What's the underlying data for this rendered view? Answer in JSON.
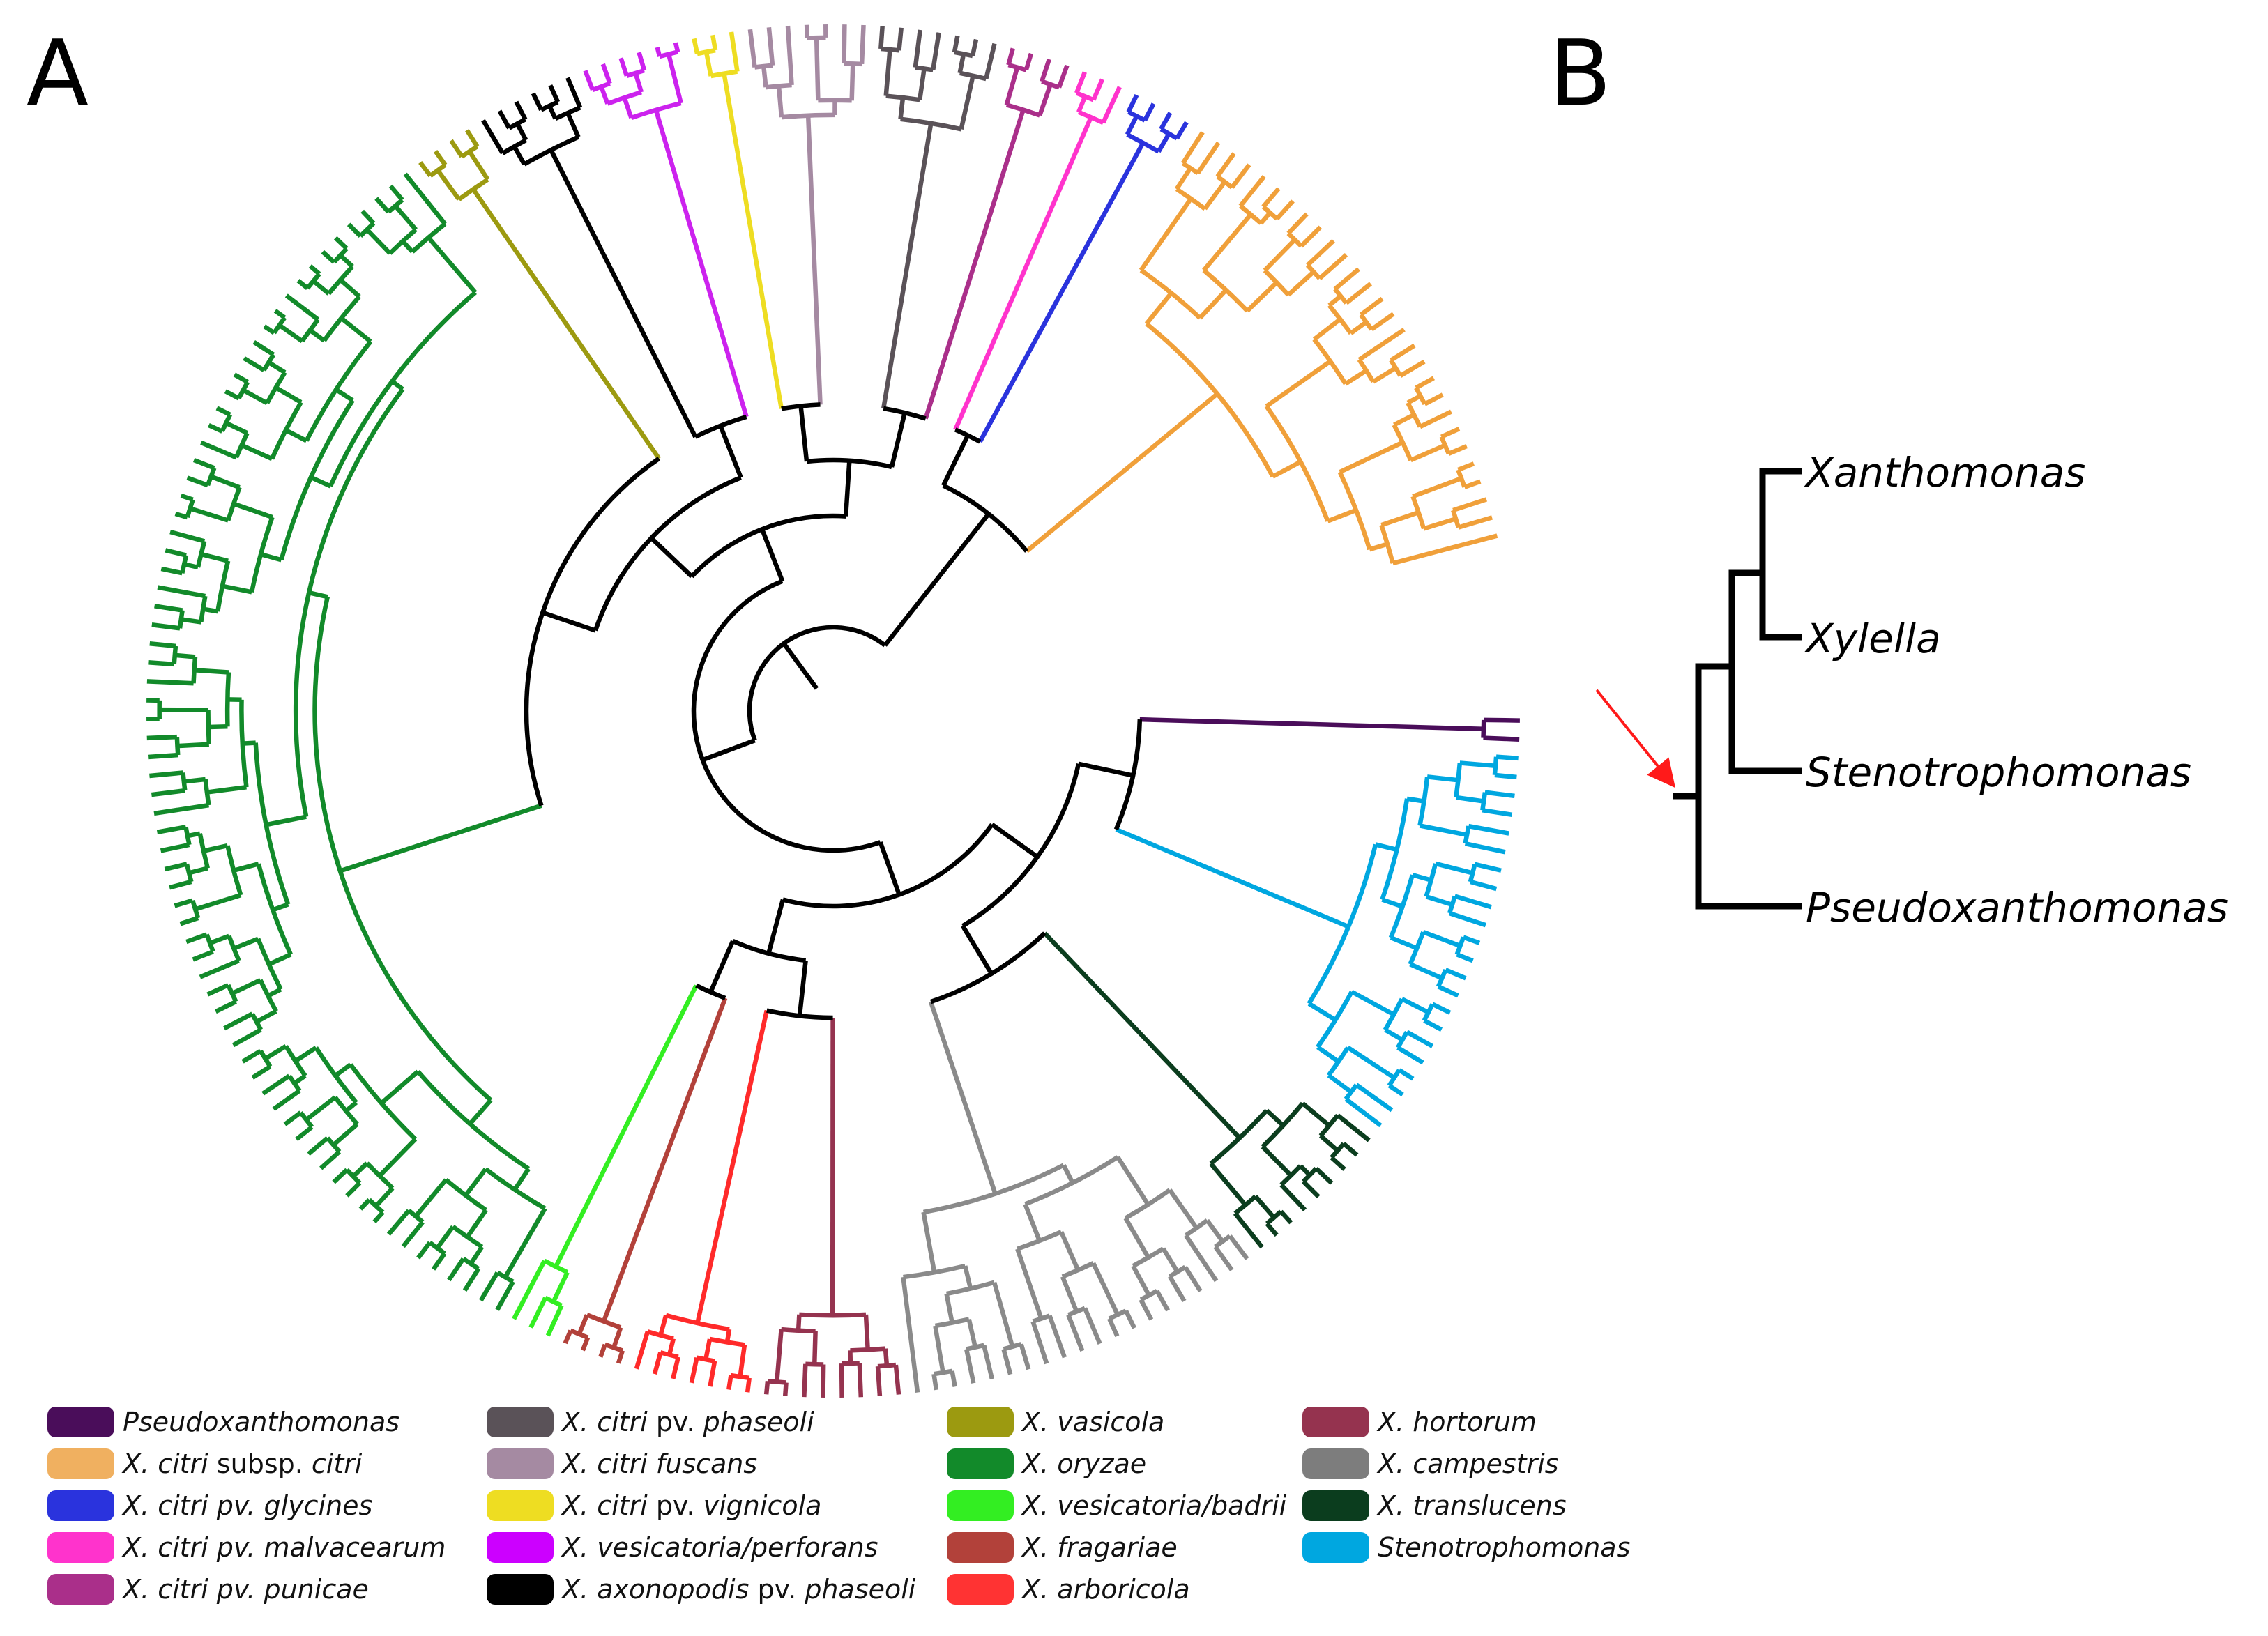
{
  "panels": {
    "a": "A",
    "b": "B"
  },
  "clades": [
    {
      "id": "pseudoxanthomonas",
      "color": "#4a0d5a",
      "tips": 2
    },
    {
      "id": "stenotrophomonas",
      "color": "#00a7e0",
      "tips": 22
    },
    {
      "id": "translucens",
      "color": "#0b3d1e",
      "tips": 9
    },
    {
      "id": "campestris",
      "color": "#8a8a8a",
      "tips": 20
    },
    {
      "id": "hortorum",
      "color": "#95334f",
      "tips": 8
    },
    {
      "id": "arboricola",
      "color": "#ff2a2a",
      "tips": 7
    },
    {
      "id": "fragariae",
      "color": "#b2413a",
      "tips": 4
    },
    {
      "id": "vesicatoria-badrii",
      "color": "#33ee22",
      "tips": 3
    },
    {
      "id": "oryzae",
      "color": "#128a2a",
      "tips": 72
    },
    {
      "id": "vasicola",
      "color": "#9c9a10",
      "tips": 4
    },
    {
      "id": "axonopodis-phaseoli",
      "color": "#000000",
      "tips": 6
    },
    {
      "id": "vesicatoria-perforans",
      "color": "#cc22ee",
      "tips": 6
    },
    {
      "id": "vignicola",
      "color": "#eedd22",
      "tips": 3
    },
    {
      "id": "fuscans",
      "color": "#a58aa2",
      "tips": 7
    },
    {
      "id": "phaseoli",
      "color": "#5a5258",
      "tips": 7
    },
    {
      "id": "punicae",
      "color": "#aa2f8a",
      "tips": 4
    },
    {
      "id": "malvacearum",
      "color": "#ff33cc",
      "tips": 3
    },
    {
      "id": "glycines",
      "color": "#2a33dd",
      "tips": 4
    },
    {
      "id": "citri",
      "color": "#f0a03a",
      "tips": 28
    }
  ],
  "panel_b": {
    "taxa": [
      "Xanthomonas",
      "Xylella",
      "Stenotrophomonas",
      "Pseudoxanthomonas"
    ]
  },
  "legend": [
    {
      "color": "#4a0d5a",
      "italic": "Pseudoxanthomonas",
      "rest": "",
      "tail": ""
    },
    {
      "color": "#f0b060",
      "italic": "X. citri",
      "rest": " subsp. ",
      "tail": "citri"
    },
    {
      "color": "#2a33dd",
      "italic": "X. citri pv. glycines",
      "rest": "",
      "tail": ""
    },
    {
      "color": "#ff33cc",
      "italic": "X. citri pv. malvacearum",
      "rest": "",
      "tail": ""
    },
    {
      "color": "#aa2f8a",
      "italic": "X. citri pv. punicae",
      "rest": "",
      "tail": ""
    },
    {
      "color": "#5a5258",
      "italic": "X. citri",
      "rest": " pv. ",
      "tail": "phaseoli"
    },
    {
      "color": "#a58aa2",
      "italic": "X. citri fuscans",
      "rest": "",
      "tail": ""
    },
    {
      "color": "#eedd22",
      "italic": "X. citri",
      "rest": " pv. ",
      "tail": "vignicola"
    },
    {
      "color": "#cc00ff",
      "italic": "X. vesicatoria/perforans",
      "rest": "",
      "tail": ""
    },
    {
      "color": "#000000",
      "italic": "X. axonopodis",
      "rest": " pv. ",
      "tail": "phaseoli"
    },
    {
      "color": "#9c9a10",
      "italic": "X. vasicola",
      "rest": "",
      "tail": ""
    },
    {
      "color": "#128a2a",
      "italic": "X. oryzae",
      "rest": "",
      "tail": ""
    },
    {
      "color": "#33ee22",
      "italic": "X. vesicatoria/badrii",
      "rest": "",
      "tail": ""
    },
    {
      "color": "#b2413a",
      "italic": "X. fragariae",
      "rest": "",
      "tail": ""
    },
    {
      "color": "#ff3333",
      "italic": "X. arboricola",
      "rest": "",
      "tail": ""
    },
    {
      "color": "#95334f",
      "italic": "X. hortorum",
      "rest": "",
      "tail": ""
    },
    {
      "color": "#7d7d7d",
      "italic": "X. campestris",
      "rest": "",
      "tail": ""
    },
    {
      "color": "#0b3d1e",
      "italic": "X. translucens",
      "rest": "",
      "tail": ""
    },
    {
      "color": "#00a7e0",
      "italic": "Stenotrophomonas",
      "rest": "",
      "tail": ""
    }
  ]
}
